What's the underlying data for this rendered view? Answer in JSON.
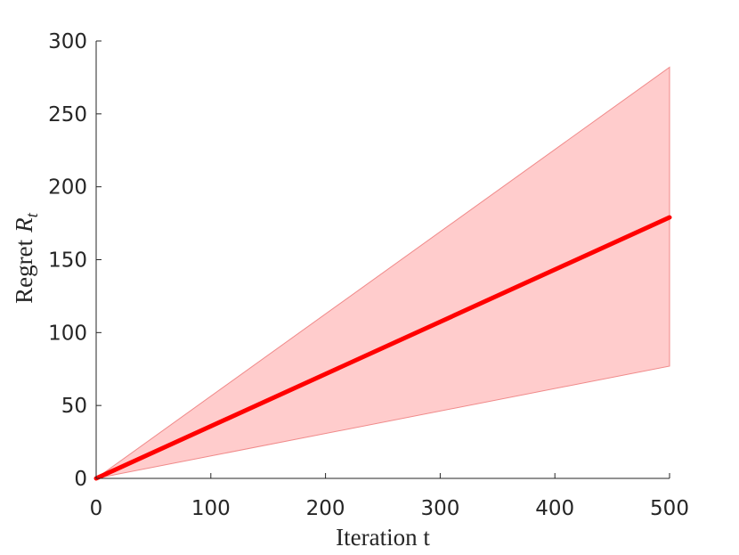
{
  "chart_data": {
    "type": "line",
    "x_label": "Iteration t",
    "y_label": {
      "text": "Regret",
      "symbol": "R",
      "subscript": "t"
    },
    "x": [
      0,
      500
    ],
    "series": [
      {
        "color": "#ff0000",
        "values": [
          0,
          179
        ]
      }
    ],
    "band": {
      "color": "#ffcccc",
      "edge_color": "#f08a8a",
      "upper": [
        0,
        282
      ],
      "lower": [
        0,
        77
      ]
    },
    "xlim": [
      0,
      500
    ],
    "ylim": [
      0,
      300
    ],
    "xticks": [
      0,
      100,
      200,
      300,
      400,
      500
    ],
    "yticks": [
      0,
      50,
      100,
      150,
      200,
      250,
      300
    ]
  }
}
